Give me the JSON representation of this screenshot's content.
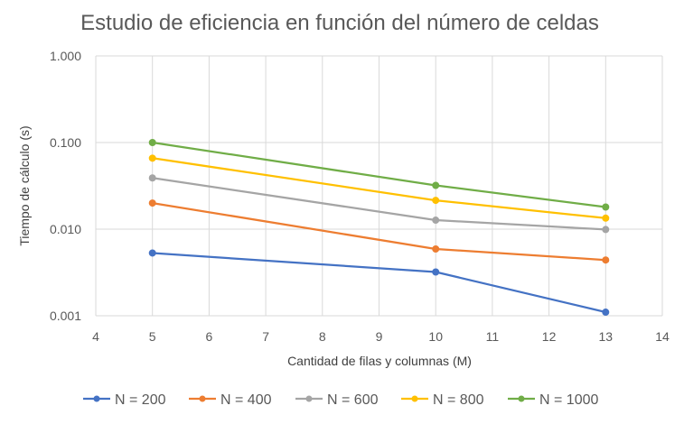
{
  "chart_data": {
    "type": "line",
    "title": "Estudio de eficiencia en función del número de celdas",
    "xlabel": "Cantidad de filas y columnas (M)",
    "ylabel": "Tiempo de cálculo (s)",
    "x_scale": "linear",
    "y_scale": "log",
    "xlim": [
      4,
      14
    ],
    "ylim": [
      0.001,
      1
    ],
    "x_ticks": [
      4,
      5,
      6,
      7,
      8,
      9,
      10,
      11,
      12,
      13,
      14
    ],
    "x_tick_labels": [
      "4",
      "5",
      "6",
      "7",
      "8",
      "9",
      "10",
      "11",
      "12",
      "13",
      "14"
    ],
    "y_ticks": [
      0.001,
      0.01,
      0.1,
      1
    ],
    "y_tick_labels": [
      "0.001",
      "0.010",
      "0.100",
      "1.000"
    ],
    "grid": true,
    "legend_position": "bottom",
    "series": [
      {
        "name": "N = 200",
        "color": "#4472C4",
        "x": [
          5,
          10,
          13
        ],
        "y": [
          0.0053,
          0.0032,
          0.0011
        ]
      },
      {
        "name": "N = 400",
        "color": "#ED7D31",
        "x": [
          5,
          10,
          13
        ],
        "y": [
          0.02,
          0.0059,
          0.0044
        ]
      },
      {
        "name": "N = 600",
        "color": "#A5A5A5",
        "x": [
          5,
          10,
          13
        ],
        "y": [
          0.039,
          0.0127,
          0.0099
        ]
      },
      {
        "name": "N = 800",
        "color": "#FFC000",
        "x": [
          5,
          10,
          13
        ],
        "y": [
          0.066,
          0.0215,
          0.0134
        ]
      },
      {
        "name": "N = 1000",
        "color": "#70AD47",
        "x": [
          5,
          10,
          13
        ],
        "y": [
          0.1,
          0.032,
          0.018
        ]
      }
    ]
  }
}
